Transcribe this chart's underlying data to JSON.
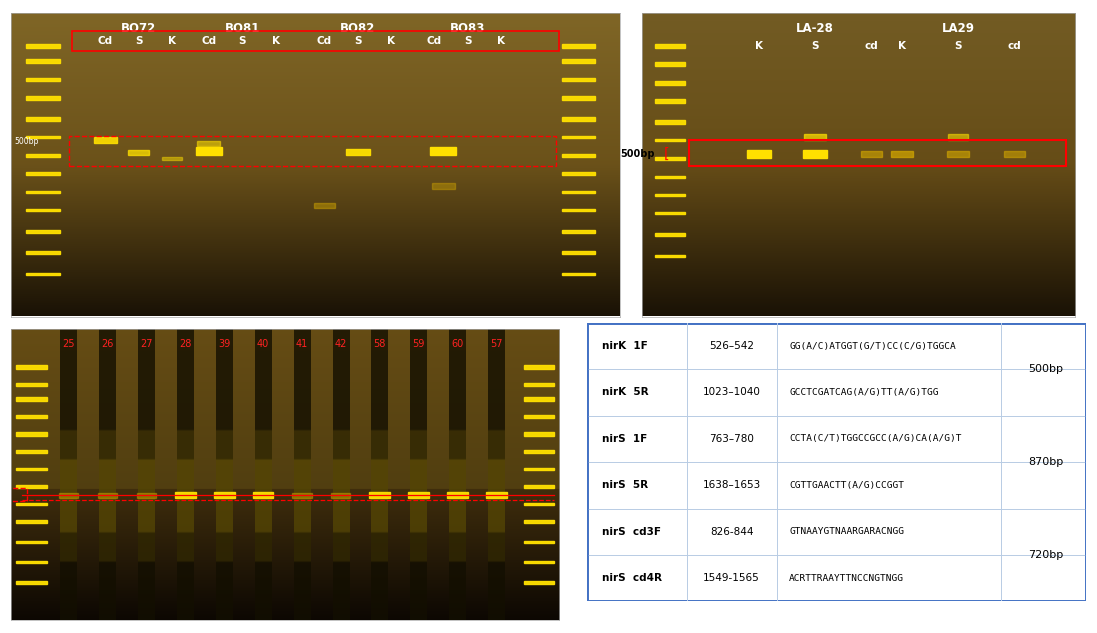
{
  "table_rows": [
    {
      "name": "nirK  1F",
      "position": "526–542",
      "sequence": "GG(A/C)ATGGT(G/T)CC(C/G)TGGCA",
      "bp_label": ""
    },
    {
      "name": "nirK  5R",
      "position": "1023–1040",
      "sequence": "GCCTCGATCAG(A/G)TT(A/G)TGG",
      "bp_label": "500bp"
    },
    {
      "name": "nirS  1F",
      "position": "763–780",
      "sequence": "CCTA(C/T)TGGCCGCC(A/G)CA(A/G)T",
      "bp_label": ""
    },
    {
      "name": "nirS  5R",
      "position": "1638–1653",
      "sequence": "CGTTGAACTT(A/G)CCGGT",
      "bp_label": "870bp"
    },
    {
      "name": "nirS  cd3F",
      "position": "826-844",
      "sequence": "GTNAAYGTNAARGARACNGG",
      "bp_label": ""
    },
    {
      "name": "nirS  cd4R",
      "position": "1549-1565",
      "sequence": "ACRTTRAAYTTNCCNGTNGG",
      "bp_label": "720bp"
    }
  ],
  "table_border_color": "#4472C4",
  "gel1_title_labels": [
    "BO72",
    "BO81",
    "BO82",
    "BO83"
  ],
  "gel1_sublabels": [
    "Cd",
    "S",
    "K"
  ],
  "gel2_title_labels": [
    "LA-28",
    "LA29"
  ],
  "gel2_sublabels": [
    "K",
    "S",
    "cd"
  ],
  "gel3_sample_labels": [
    "25",
    "26",
    "27",
    "28",
    "39",
    "40",
    "41",
    "42",
    "58",
    "59",
    "60",
    "57"
  ],
  "label_red_color": "#FF4444",
  "label_white_color": "#FFFFFF"
}
